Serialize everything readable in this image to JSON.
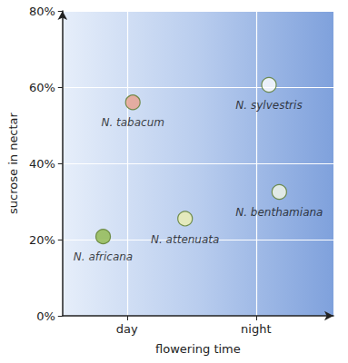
{
  "chart_data": {
    "type": "scatter",
    "xlabel": "flowering time",
    "ylabel": "sucrose in nectar",
    "x": [
      0.63,
      1.09,
      1.9,
      3.2,
      3.36
    ],
    "values": [
      20.8,
      56,
      25.5,
      60.6,
      32.5
    ],
    "labels": [
      "N. africana",
      "N. tabacum",
      "N. attenuata",
      "N. sylvestris",
      "N. benthamiana"
    ],
    "colors": [
      "#8fb84a",
      "#e9a08c",
      "#eef0b0",
      "#ffffff",
      "#f4f7e6"
    ],
    "marker": "circle",
    "xlim": [
      0,
      4.2
    ],
    "xticks": [
      {
        "value": 1,
        "label": "day"
      },
      {
        "value": 3,
        "label": "night"
      }
    ],
    "ylim": [
      0,
      80
    ],
    "yticks": [
      {
        "value": 0,
        "label": "0%"
      },
      {
        "value": 20,
        "label": "20%"
      },
      {
        "value": 40,
        "label": "40%"
      },
      {
        "value": 60,
        "label": "60%"
      },
      {
        "value": 80,
        "label": "80%"
      }
    ],
    "grid": true
  }
}
